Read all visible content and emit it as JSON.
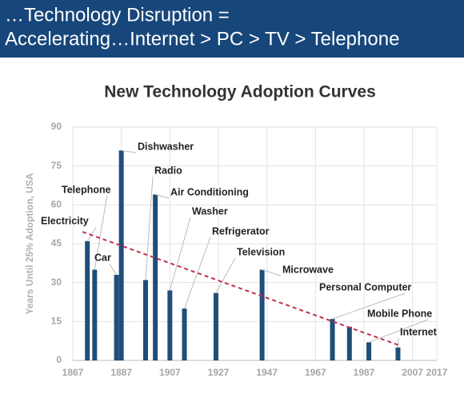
{
  "header": {
    "line1": "…Technology Disruption =",
    "line2": "Accelerating…Internet > PC > TV > Telephone"
  },
  "chart_data": {
    "type": "bar",
    "title": "New Technology Adoption Curves",
    "y_label": "Years Until 25% Adoption, USA",
    "x": [
      1873,
      1876,
      1885,
      1887,
      1897,
      1901,
      1907,
      1913,
      1926,
      1945,
      1974,
      1981,
      1989,
      2001
    ],
    "values": [
      46,
      35,
      33,
      81,
      31,
      64,
      27,
      20,
      26,
      35,
      16,
      13,
      7,
      5
    ],
    "labels": [
      "Electricity",
      "Telephone",
      "Car",
      "Dishwasher",
      "Radio",
      "Air Conditioning",
      "Washer",
      "Refrigerator",
      "Television",
      "Microwave",
      "Personal Computer",
      null,
      "Mobile Phone",
      "Internet"
    ],
    "color": "#1f4e79",
    "trend": {
      "x": [
        1871,
        2001
      ],
      "values": [
        49.6,
        6
      ],
      "color": "#c0304a"
    },
    "xlim": [
      1867,
      2017
    ],
    "xticks": [
      1867,
      1887,
      1907,
      1927,
      1947,
      1967,
      1987,
      2007,
      2017
    ],
    "ylim": [
      0,
      90
    ],
    "yticks": [
      0,
      15,
      30,
      45,
      60,
      75,
      90
    ],
    "grid": true
  }
}
